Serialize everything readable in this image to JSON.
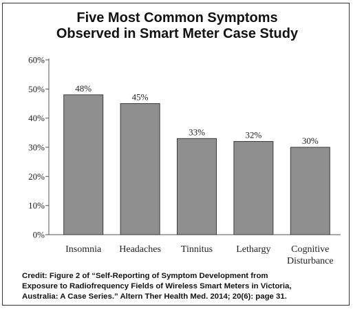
{
  "chart_data": {
    "type": "bar",
    "title_lines": [
      "Five Most Common Symptoms",
      "Observed in Smart Meter Case Study"
    ],
    "categories": [
      [
        "Insomnia"
      ],
      [
        "Headaches"
      ],
      [
        "Tinnitus"
      ],
      [
        "Lethargy"
      ],
      [
        "Cognitive",
        "Disturbance"
      ]
    ],
    "values": [
      48,
      45,
      33,
      32,
      30
    ],
    "data_labels": [
      "48%",
      "45%",
      "33%",
      "32%",
      "30%"
    ],
    "ylim": [
      0,
      60
    ],
    "yticks": [
      0,
      10,
      20,
      30,
      40,
      50,
      60
    ],
    "ytick_labels": [
      "0%",
      "10%",
      "20%",
      "30%",
      "40%",
      "50%",
      "60%"
    ],
    "bar_color": "#8f8f8f",
    "bar_edge_color": "#3a3a3a",
    "axis_color": "#555555"
  },
  "credit_lines": [
    "Credit:  Figure 2 of “Self-Reporting of Symptom Development from",
    "Exposure to Radiofrequency Fields of Wireless Smart Meters in Victoria,",
    "Australia: A Case Series.” Altern Ther Health Med. 2014; 20(6): page 31."
  ]
}
